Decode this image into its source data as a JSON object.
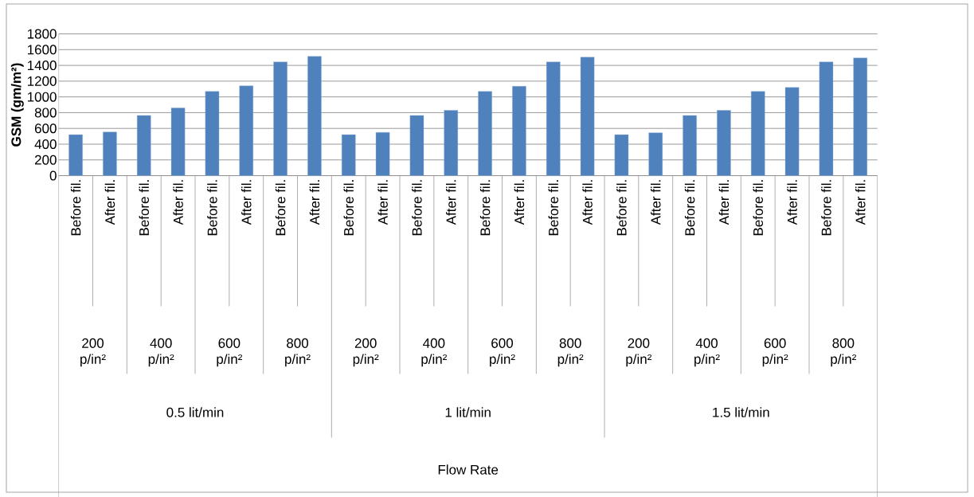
{
  "chart_data": {
    "type": "bar",
    "ylabel": "GSM (gm/m²)",
    "categories": [
      "Before fil.",
      "After fil.",
      "Before fil.",
      "After fil.",
      "Before fil.",
      "After fil.",
      "Before fil.",
      "After fil.",
      "Before fil.",
      "After fil.",
      "Before fil.",
      "After fil.",
      "Before fil.",
      "After fil.",
      "Before fil.",
      "After fil.",
      "Before fil.",
      "After fil.",
      "Before fil.",
      "After fil.",
      "Before fil.",
      "After fil.",
      "Before fil.",
      "After fil."
    ],
    "values": [
      520,
      555,
      765,
      860,
      1070,
      1140,
      1445,
      1515,
      520,
      550,
      765,
      830,
      1070,
      1135,
      1445,
      1505,
      520,
      545,
      765,
      830,
      1070,
      1120,
      1445,
      1495
    ],
    "color": "#4f81bd",
    "ylim": [
      0,
      1800
    ],
    "yticks": [
      0,
      200,
      400,
      600,
      800,
      1000,
      1200,
      1400,
      1600,
      1800
    ],
    "grid": "y",
    "annotations": [
      "200 p/in²",
      "400 p/in²",
      "600 p/in²",
      "800 p/in²",
      "200 p/in²",
      "400 p/in²",
      "600 p/in²",
      "800 p/in²",
      "200 p/in²",
      "400 p/in²",
      "600 p/in²",
      "800 p/in²",
      "0.5 lit/min",
      "1 lit/min",
      "1.5 lit/min",
      "Flow Rate"
    ]
  }
}
